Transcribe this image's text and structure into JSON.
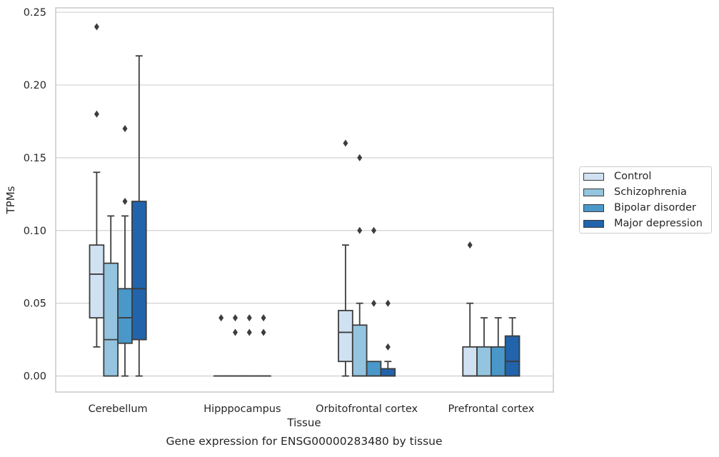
{
  "chart_data": {
    "type": "box",
    "title": "",
    "caption": "Gene expression for ENSG00000283480 by tissue",
    "xlabel": "Tissue",
    "ylabel": "TPMs",
    "ylim": [
      -0.011,
      0.253
    ],
    "yticks": [
      "0.00",
      "0.05",
      "0.10",
      "0.15",
      "0.20",
      "0.25"
    ],
    "grid": "horizontal",
    "legend_position": "right",
    "categories": [
      "Cerebellum",
      "Hipppocampus",
      "Orbitofrontal cortex",
      "Prefrontal cortex"
    ],
    "series": [
      {
        "name": "Control",
        "color": "#d0e1f2",
        "boxes": [
          {
            "q1": 0.04,
            "median": 0.07,
            "q3": 0.09,
            "whisker_low": 0.02,
            "whisker_high": 0.14,
            "outliers": [
              0.18,
              0.24
            ]
          },
          {
            "q1": 0.0,
            "median": 0.0,
            "q3": 0.0,
            "whisker_low": 0.0,
            "whisker_high": 0.0,
            "outliers": [
              0.04
            ]
          },
          {
            "q1": 0.01,
            "median": 0.03,
            "q3": 0.045,
            "whisker_low": 0.0,
            "whisker_high": 0.09,
            "outliers": [
              0.16
            ]
          },
          {
            "q1": 0.0,
            "median": 0.0,
            "q3": 0.02,
            "whisker_low": 0.0,
            "whisker_high": 0.05,
            "outliers": [
              0.09
            ]
          }
        ]
      },
      {
        "name": "Schizophrenia",
        "color": "#94c4df",
        "boxes": [
          {
            "q1": 0.0,
            "median": 0.025,
            "q3": 0.0775,
            "whisker_low": 0.0,
            "whisker_high": 0.11,
            "outliers": []
          },
          {
            "q1": 0.0,
            "median": 0.0,
            "q3": 0.0,
            "whisker_low": 0.0,
            "whisker_high": 0.0,
            "outliers": [
              0.03,
              0.04
            ]
          },
          {
            "q1": 0.0,
            "median": 0.0,
            "q3": 0.035,
            "whisker_low": 0.0,
            "whisker_high": 0.05,
            "outliers": [
              0.1,
              0.15
            ]
          },
          {
            "q1": 0.0,
            "median": 0.0,
            "q3": 0.02,
            "whisker_low": 0.0,
            "whisker_high": 0.04,
            "outliers": []
          }
        ]
      },
      {
        "name": "Bipolar disorder",
        "color": "#4a98c9",
        "boxes": [
          {
            "q1": 0.0225,
            "median": 0.04,
            "q3": 0.06,
            "whisker_low": 0.0,
            "whisker_high": 0.11,
            "outliers": [
              0.12,
              0.17
            ]
          },
          {
            "q1": 0.0,
            "median": 0.0,
            "q3": 0.0,
            "whisker_low": 0.0,
            "whisker_high": 0.0,
            "outliers": [
              0.03,
              0.04
            ]
          },
          {
            "q1": 0.0,
            "median": 0.0,
            "q3": 0.01,
            "whisker_low": 0.0,
            "whisker_high": 0.01,
            "outliers": [
              0.05,
              0.1
            ]
          },
          {
            "q1": 0.0,
            "median": 0.0,
            "q3": 0.02,
            "whisker_low": 0.0,
            "whisker_high": 0.04,
            "outliers": []
          }
        ]
      },
      {
        "name": "Major depression",
        "color": "#2164ab",
        "boxes": [
          {
            "q1": 0.025,
            "median": 0.06,
            "q3": 0.12,
            "whisker_low": 0.0,
            "whisker_high": 0.22,
            "outliers": []
          },
          {
            "q1": 0.0,
            "median": 0.0,
            "q3": 0.0,
            "whisker_low": 0.0,
            "whisker_high": 0.0,
            "outliers": [
              0.03,
              0.04
            ]
          },
          {
            "q1": 0.0,
            "median": 0.0,
            "q3": 0.005,
            "whisker_low": 0.0,
            "whisker_high": 0.01,
            "outliers": [
              0.02,
              0.05
            ]
          },
          {
            "q1": 0.0,
            "median": 0.01,
            "q3": 0.0275,
            "whisker_low": 0.0,
            "whisker_high": 0.04,
            "outliers": []
          }
        ]
      }
    ]
  }
}
